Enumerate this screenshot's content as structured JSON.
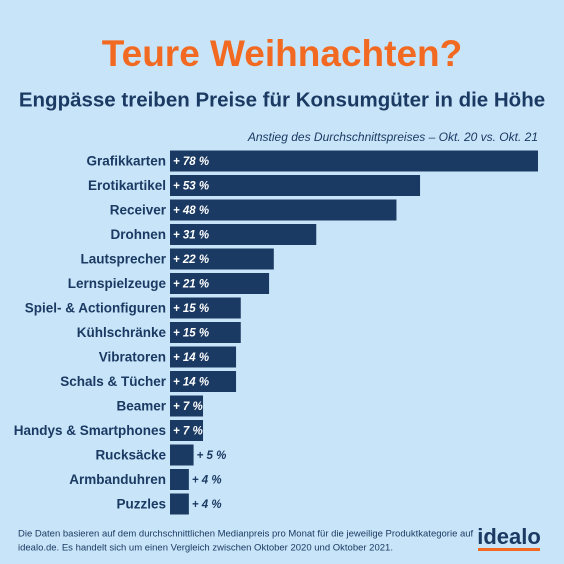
{
  "chart_data": {
    "type": "barh",
    "title": "Teure Weihnachten?",
    "subtitle": "Engpässe treiben Preise für Konsumgüter in die Höhe",
    "note": "Anstieg des Durchschnittspreises – Okt. 20 vs. Okt. 21",
    "categories": [
      "Grafikkarten",
      "Erotikartikel",
      "Receiver",
      "Drohnen",
      "Lautsprecher",
      "Lernspielzeuge",
      "Spiel- & Actionfiguren",
      "Kühlschränke",
      "Vibratoren",
      "Schals & Tücher",
      "Beamer",
      "Handys & Smartphones",
      "Rucksäcke",
      "Armbanduhren",
      "Puzzles"
    ],
    "values": [
      78,
      53,
      48,
      31,
      22,
      21,
      15,
      15,
      14,
      14,
      7,
      7,
      5,
      4,
      4
    ],
    "value_labels": [
      "+ 78 %",
      "+ 53 %",
      "+ 48 %",
      "+ 31 %",
      "+ 22 %",
      "+ 21 %",
      "+ 15 %",
      "+ 15 %",
      "+ 14 %",
      "+ 14 %",
      "+ 7 %",
      "+ 7 %",
      "+ 5 %",
      "+ 4 %",
      "+ 4 %"
    ],
    "color": "#1b3a63",
    "footnote": [
      "Die Daten basieren auf dem durchschnittlichen Medianpreis pro Monat für die jeweilige Produktkategorie auf",
      "idealo.de. Es handelt sich um einen Vergleich zwischen Oktober 2020 und Oktober 2021."
    ],
    "logo": "idealo"
  }
}
